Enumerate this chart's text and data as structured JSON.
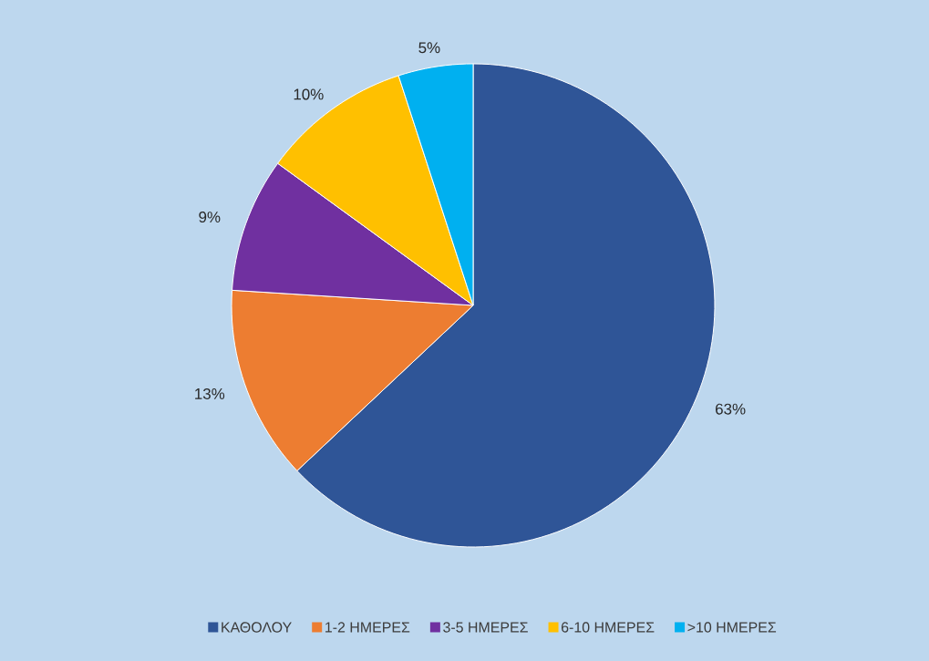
{
  "chart_data": {
    "type": "pie",
    "categories": [
      "ΚΑΘΟΛΟΥ",
      "1-2 ΗΜΕΡΕΣ",
      "3-5 ΗΜΕΡΕΣ",
      "6-10 ΗΜΕΡΕΣ",
      ">10 ΗΜΕΡΕΣ"
    ],
    "values": [
      63,
      13,
      9,
      10,
      5
    ],
    "colors": [
      "#2f5597",
      "#ed7d31",
      "#7030a0",
      "#ffc000",
      "#00b0f0"
    ],
    "value_labels": [
      "63%",
      "13%",
      "9%",
      "10%",
      "5%"
    ],
    "legend": "bottom"
  }
}
